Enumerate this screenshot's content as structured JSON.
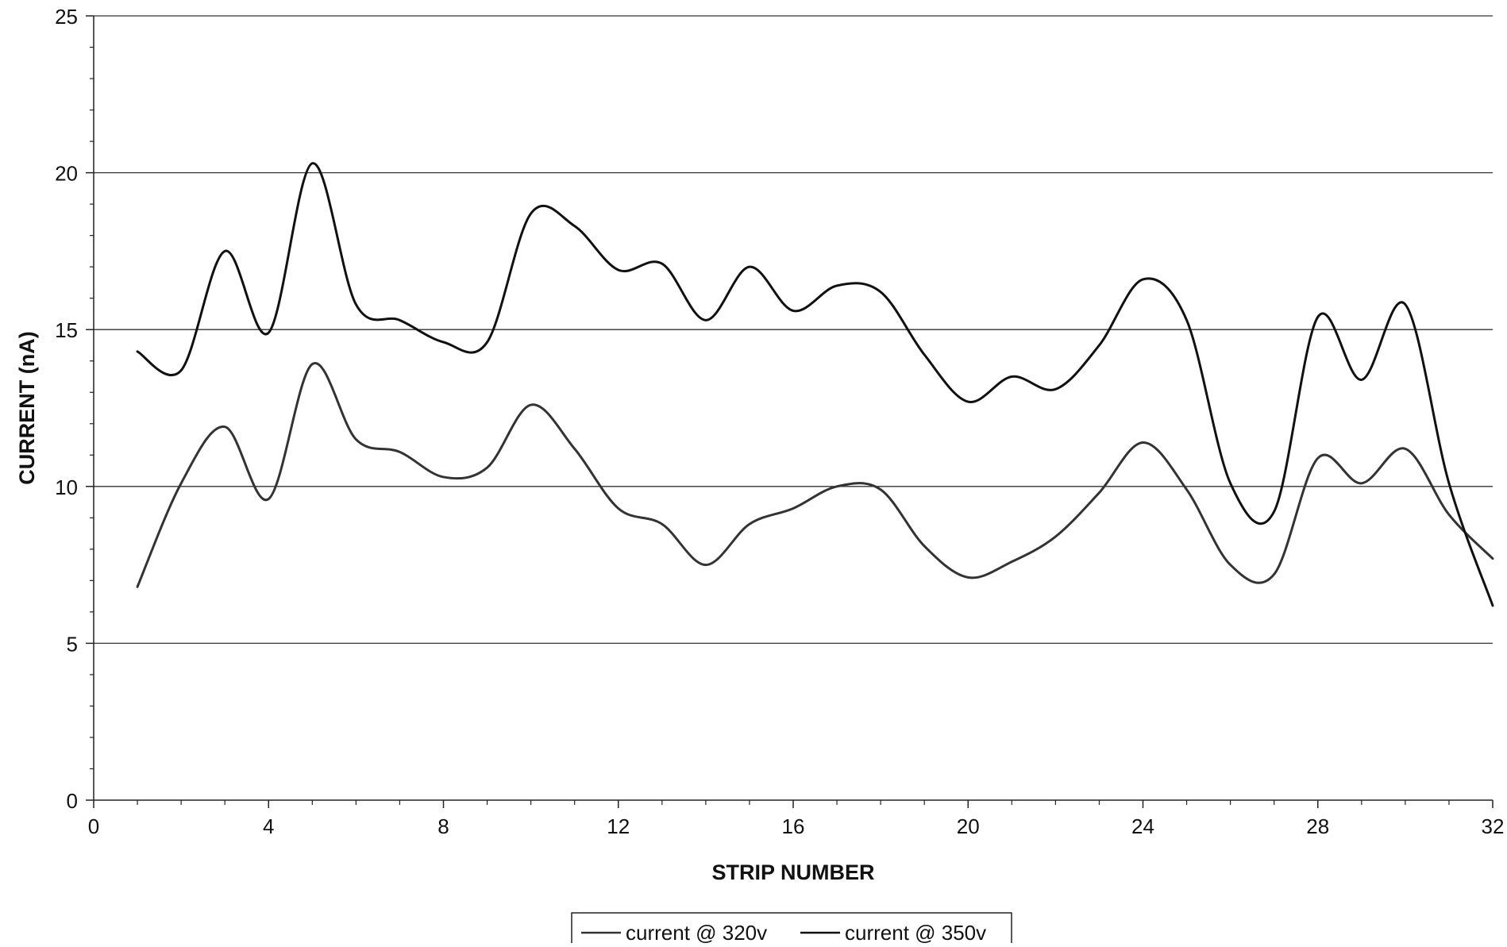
{
  "chart_data": {
    "type": "line",
    "title": "",
    "xlabel": "STRIP NUMBER",
    "ylabel": "CURRENT (nA)",
    "xlim": [
      0,
      32
    ],
    "ylim": [
      0,
      25
    ],
    "x_ticks": [
      "0",
      "4",
      "8",
      "12",
      "16",
      "20",
      "24",
      "28",
      "32"
    ],
    "y_ticks": [
      "0",
      "5",
      "10",
      "15",
      "20",
      "25"
    ],
    "grid": "horizontal",
    "legend_position": "bottom-center",
    "x": [
      1,
      2,
      3,
      4,
      5,
      6,
      7,
      8,
      9,
      10,
      11,
      12,
      13,
      14,
      15,
      16,
      17,
      18,
      19,
      20,
      21,
      22,
      23,
      24,
      25,
      26,
      27,
      28,
      29,
      30,
      31,
      32
    ],
    "series": [
      {
        "name": "current @ 320v",
        "color": "#333333",
        "values": [
          6.8,
          10.1,
          11.9,
          9.6,
          13.9,
          11.5,
          11.1,
          10.3,
          10.6,
          12.6,
          11.2,
          9.3,
          8.8,
          7.5,
          8.8,
          9.3,
          10.0,
          9.9,
          8.1,
          7.1,
          7.6,
          8.4,
          9.8,
          11.4,
          9.9,
          7.5,
          7.2,
          10.9,
          10.1,
          11.2,
          9.1,
          7.7
        ]
      },
      {
        "name": "current @ 350v",
        "color": "#111111",
        "values": [
          14.3,
          13.7,
          17.5,
          14.9,
          20.3,
          15.8,
          15.3,
          14.6,
          14.6,
          18.7,
          18.3,
          16.9,
          17.1,
          15.3,
          17.0,
          15.6,
          16.4,
          16.2,
          14.2,
          12.7,
          13.5,
          13.1,
          14.5,
          16.6,
          15.3,
          10.1,
          9.2,
          15.4,
          13.4,
          15.8,
          10.1,
          6.2
        ]
      }
    ]
  }
}
